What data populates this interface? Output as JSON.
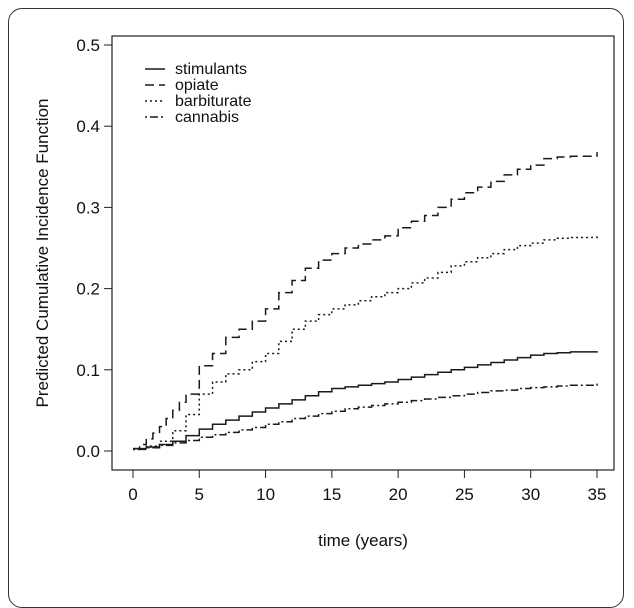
{
  "chart_data": {
    "type": "line",
    "xlabel": "time (years)",
    "ylabel": "Predicted Cumulative Incidence Function",
    "xlim": [
      0,
      35
    ],
    "ylim": [
      0,
      0.5
    ],
    "x_ticks": [
      0,
      5,
      10,
      15,
      20,
      25,
      30,
      35
    ],
    "y_ticks": [
      "0.0",
      "0.1",
      "0.2",
      "0.3",
      "0.4",
      "0.5"
    ],
    "legend_position": "top-left",
    "step": true,
    "series": [
      {
        "name": "stimulants",
        "line_style": "solid",
        "x": [
          0,
          1,
          2,
          3,
          4,
          5,
          6,
          7,
          8,
          9,
          10,
          11,
          12,
          13,
          14,
          15,
          16,
          17,
          18,
          19,
          20,
          21,
          22,
          23,
          24,
          25,
          26,
          27,
          28,
          29,
          30,
          31,
          32,
          33,
          34,
          35
        ],
        "values": [
          0.003,
          0.005,
          0.008,
          0.012,
          0.019,
          0.027,
          0.033,
          0.038,
          0.043,
          0.048,
          0.053,
          0.058,
          0.063,
          0.068,
          0.073,
          0.077,
          0.079,
          0.081,
          0.083,
          0.085,
          0.088,
          0.091,
          0.094,
          0.097,
          0.1,
          0.103,
          0.106,
          0.109,
          0.112,
          0.115,
          0.118,
          0.12,
          0.121,
          0.122,
          0.122,
          0.123
        ]
      },
      {
        "name": "opiate",
        "line_style": "dashed",
        "x": [
          0,
          0.5,
          1,
          1.5,
          2,
          2.5,
          3,
          3.5,
          4,
          5,
          6,
          7,
          8,
          9,
          10,
          11,
          12,
          13,
          14,
          15,
          16,
          17,
          18,
          19,
          20,
          21,
          22,
          23,
          24,
          25,
          26,
          27,
          28,
          29,
          30,
          31,
          32,
          33,
          34,
          35
        ],
        "values": [
          0.003,
          0.008,
          0.015,
          0.022,
          0.03,
          0.04,
          0.05,
          0.06,
          0.07,
          0.105,
          0.12,
          0.14,
          0.15,
          0.16,
          0.175,
          0.195,
          0.21,
          0.225,
          0.235,
          0.243,
          0.25,
          0.255,
          0.26,
          0.265,
          0.275,
          0.283,
          0.29,
          0.3,
          0.31,
          0.318,
          0.325,
          0.332,
          0.34,
          0.347,
          0.352,
          0.36,
          0.362,
          0.363,
          0.363,
          0.368
        ]
      },
      {
        "name": "barbiturate",
        "line_style": "dotted",
        "x": [
          0,
          1,
          2,
          3,
          4,
          5,
          6,
          7,
          8,
          9,
          10,
          11,
          12,
          13,
          14,
          15,
          16,
          17,
          18,
          19,
          20,
          21,
          22,
          23,
          24,
          25,
          26,
          27,
          28,
          29,
          30,
          31,
          32,
          33,
          34,
          35
        ],
        "values": [
          0.002,
          0.006,
          0.012,
          0.025,
          0.045,
          0.07,
          0.085,
          0.095,
          0.1,
          0.11,
          0.12,
          0.135,
          0.15,
          0.16,
          0.168,
          0.175,
          0.18,
          0.185,
          0.19,
          0.195,
          0.2,
          0.207,
          0.213,
          0.22,
          0.228,
          0.233,
          0.238,
          0.243,
          0.248,
          0.253,
          0.256,
          0.26,
          0.262,
          0.263,
          0.263,
          0.268
        ]
      },
      {
        "name": "cannabis",
        "line_style": "dashdot",
        "x": [
          0,
          1,
          2,
          3,
          4,
          5,
          6,
          7,
          8,
          9,
          10,
          11,
          12,
          13,
          14,
          15,
          16,
          17,
          18,
          19,
          20,
          21,
          22,
          23,
          24,
          25,
          26,
          27,
          28,
          29,
          30,
          31,
          32,
          33,
          34,
          35
        ],
        "values": [
          0.002,
          0.004,
          0.007,
          0.01,
          0.013,
          0.017,
          0.02,
          0.023,
          0.026,
          0.029,
          0.033,
          0.036,
          0.04,
          0.043,
          0.046,
          0.049,
          0.052,
          0.054,
          0.056,
          0.058,
          0.06,
          0.062,
          0.064,
          0.066,
          0.068,
          0.07,
          0.072,
          0.074,
          0.075,
          0.077,
          0.078,
          0.079,
          0.08,
          0.081,
          0.081,
          0.083
        ]
      }
    ]
  }
}
